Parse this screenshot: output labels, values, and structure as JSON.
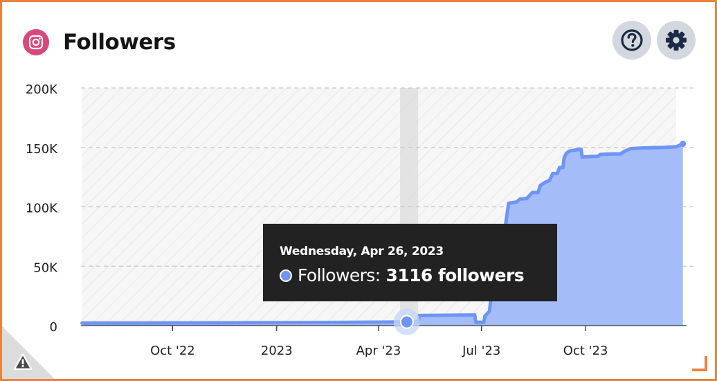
{
  "widget": {
    "title": "Followers",
    "platform_icon": "instagram-icon",
    "help_icon": "question-circle-icon",
    "settings_icon": "gear-icon",
    "warning_icon": "warning-triangle-icon",
    "accent_color": "#e8843e"
  },
  "tooltip": {
    "date": "Wednesday, Apr 26, 2023",
    "series_label": "Followers:",
    "value_text": "3116 followers"
  },
  "chart_data": {
    "type": "area",
    "series": [
      {
        "name": "Followers",
        "color": "#6e95f4",
        "fill": "#a4bdf8",
        "points": [
          [
            "2022-07-13",
            2100
          ],
          [
            "2022-09-01",
            2200
          ],
          [
            "2022-11-15",
            2350
          ],
          [
            "2023-01-01",
            2500
          ],
          [
            "2023-03-01",
            2700
          ],
          [
            "2023-04-26",
            3116
          ],
          [
            "2023-05-06",
            3100
          ],
          [
            "2023-05-07",
            8500
          ],
          [
            "2023-06-25",
            9000
          ],
          [
            "2023-06-26",
            2800
          ],
          [
            "2023-07-03",
            2800
          ],
          [
            "2023-07-04",
            8000
          ],
          [
            "2023-07-08",
            12000
          ],
          [
            "2023-07-10",
            28000
          ],
          [
            "2023-07-14",
            30000
          ],
          [
            "2023-07-19",
            60000
          ],
          [
            "2023-07-23",
            90000
          ],
          [
            "2023-07-25",
            103000
          ],
          [
            "2023-08-01",
            104000
          ],
          [
            "2023-08-04",
            106500
          ],
          [
            "2023-08-10",
            107000
          ],
          [
            "2023-08-15",
            112000
          ],
          [
            "2023-08-20",
            112000
          ],
          [
            "2023-08-22",
            118000
          ],
          [
            "2023-08-27",
            121000
          ],
          [
            "2023-08-30",
            122000
          ],
          [
            "2023-09-02",
            128000
          ],
          [
            "2023-09-06",
            128000
          ],
          [
            "2023-09-08",
            133000
          ],
          [
            "2023-09-11",
            133000
          ],
          [
            "2023-09-12",
            141000
          ],
          [
            "2023-09-14",
            145000
          ],
          [
            "2023-09-17",
            147000
          ],
          [
            "2023-09-27",
            148500
          ],
          [
            "2023-09-28",
            142000
          ],
          [
            "2023-10-12",
            142500
          ],
          [
            "2023-10-14",
            144000
          ],
          [
            "2023-10-25",
            144500
          ],
          [
            "2023-11-01",
            144500
          ],
          [
            "2023-11-05",
            147000
          ],
          [
            "2023-11-10",
            149000
          ],
          [
            "2023-11-20",
            149500
          ],
          [
            "2023-12-10",
            150000
          ],
          [
            "2023-12-20",
            150500
          ],
          [
            "2023-12-26",
            153000
          ]
        ]
      }
    ],
    "y_ticks": [
      "0",
      "50K",
      "100K",
      "150K",
      "200K"
    ],
    "y_values": [
      0,
      50000,
      100000,
      150000,
      200000
    ],
    "ylim": [
      0,
      200000
    ],
    "x_ticks": [
      {
        "label": "Oct '22",
        "date": "2022-10-01"
      },
      {
        "label": "2023",
        "date": "2023-01-01"
      },
      {
        "label": "Apr '23",
        "date": "2023-04-01"
      },
      {
        "label": "Jul '23",
        "date": "2023-07-01"
      },
      {
        "label": "Oct '23",
        "date": "2023-10-01"
      }
    ],
    "xlim": [
      "2022-07-12",
      "2023-12-28"
    ],
    "hatched_range": [
      "2022-07-13",
      "2023-12-20"
    ],
    "highlight_range": [
      "2023-04-20",
      "2023-05-06"
    ],
    "hover_point": {
      "date": "2023-04-26",
      "value": 3116
    },
    "grid": "horizontal-dashed"
  }
}
